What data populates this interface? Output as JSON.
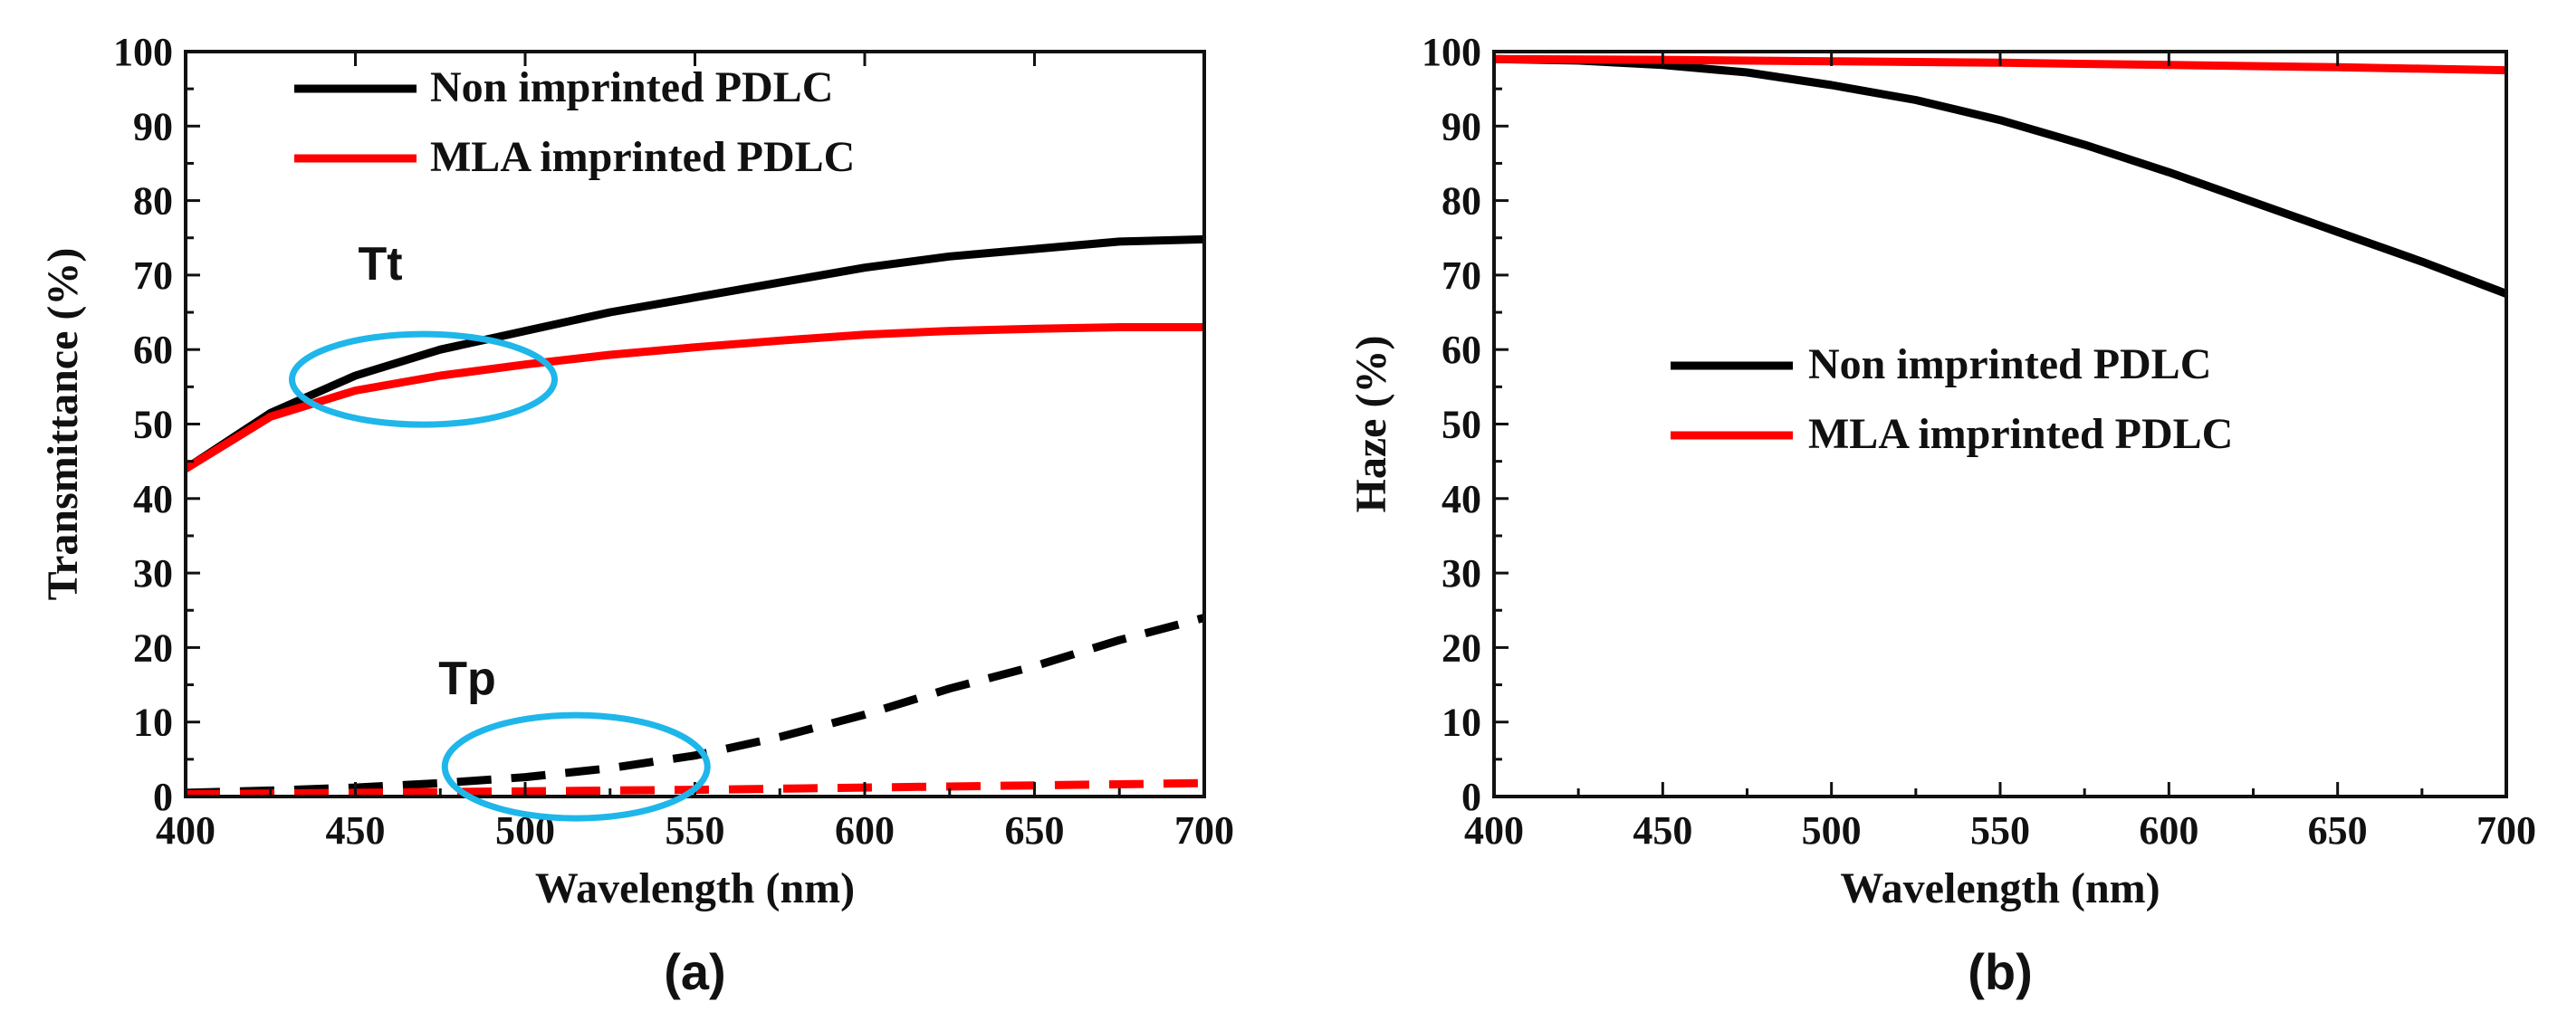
{
  "chart_data": [
    {
      "type": "line",
      "panel_label": "(a)",
      "xlabel": "Wavelength (nm)",
      "ylabel": "Transmittance (%)",
      "xlim": [
        400,
        700
      ],
      "ylim": [
        0,
        100
      ],
      "x_ticks": [
        400,
        450,
        500,
        550,
        600,
        650,
        700
      ],
      "y_ticks": [
        0,
        10,
        20,
        30,
        40,
        50,
        60,
        70,
        80,
        90,
        100
      ],
      "legend_position": "top-left",
      "legend": [
        {
          "label": "Non imprinted PDLC",
          "color": "#000000"
        },
        {
          "label": "MLA imprinted PDLC",
          "color": "#ff0000"
        }
      ],
      "annotations": [
        {
          "text": "Tt",
          "x": 470,
          "y": 56
        },
        {
          "text": "Tp",
          "x": 515,
          "y": 4
        }
      ],
      "series": [
        {
          "name": "Non imprinted PDLC - Tt",
          "color": "#000000",
          "dashed": false,
          "x": [
            400,
            425,
            450,
            475,
            500,
            525,
            550,
            575,
            600,
            625,
            650,
            675,
            700
          ],
          "y": [
            44,
            51.5,
            56.5,
            60,
            62.5,
            65,
            67,
            69,
            71,
            72.5,
            73.5,
            74.5,
            74.8
          ]
        },
        {
          "name": "MLA imprinted PDLC - Tt",
          "color": "#ff0000",
          "dashed": false,
          "x": [
            400,
            425,
            450,
            475,
            500,
            525,
            550,
            575,
            600,
            625,
            650,
            675,
            700
          ],
          "y": [
            44,
            51,
            54.5,
            56.5,
            58,
            59.3,
            60.3,
            61.2,
            62,
            62.5,
            62.8,
            63,
            63
          ]
        },
        {
          "name": "Non imprinted PDLC - Tp",
          "color": "#000000",
          "dashed": true,
          "x": [
            400,
            425,
            450,
            475,
            500,
            525,
            550,
            575,
            600,
            625,
            650,
            675,
            700
          ],
          "y": [
            0.5,
            0.8,
            1.2,
            1.8,
            2.6,
            3.8,
            5.5,
            8,
            11,
            14.5,
            17.5,
            21,
            24
          ]
        },
        {
          "name": "MLA imprinted PDLC - Tp",
          "color": "#ff0000",
          "dashed": true,
          "x": [
            400,
            450,
            500,
            550,
            600,
            650,
            700
          ],
          "y": [
            0.3,
            0.5,
            0.7,
            0.9,
            1.2,
            1.5,
            1.8
          ]
        }
      ]
    },
    {
      "type": "line",
      "panel_label": "(b)",
      "xlabel": "Wavelength (nm)",
      "ylabel": "Haze (%)",
      "xlim": [
        400,
        700
      ],
      "ylim": [
        0,
        100
      ],
      "x_ticks": [
        400,
        450,
        500,
        550,
        600,
        650,
        700
      ],
      "y_ticks": [
        0,
        10,
        20,
        30,
        40,
        50,
        60,
        70,
        80,
        90,
        100
      ],
      "legend_position": "center",
      "legend": [
        {
          "label": "Non imprinted PDLC",
          "color": "#000000"
        },
        {
          "label": "MLA imprinted PDLC",
          "color": "#ff0000"
        }
      ],
      "series": [
        {
          "name": "Non imprinted PDLC",
          "color": "#000000",
          "dashed": false,
          "x": [
            400,
            425,
            450,
            475,
            500,
            525,
            550,
            575,
            600,
            625,
            650,
            675,
            700
          ],
          "y": [
            99,
            98.8,
            98.2,
            97.2,
            95.5,
            93.5,
            90.8,
            87.5,
            83.8,
            79.8,
            75.8,
            71.8,
            67.5
          ]
        },
        {
          "name": "MLA imprinted PDLC",
          "color": "#ff0000",
          "dashed": false,
          "x": [
            400,
            450,
            500,
            550,
            600,
            650,
            700
          ],
          "y": [
            99,
            98.9,
            98.7,
            98.5,
            98.2,
            97.9,
            97.5
          ]
        }
      ]
    }
  ]
}
